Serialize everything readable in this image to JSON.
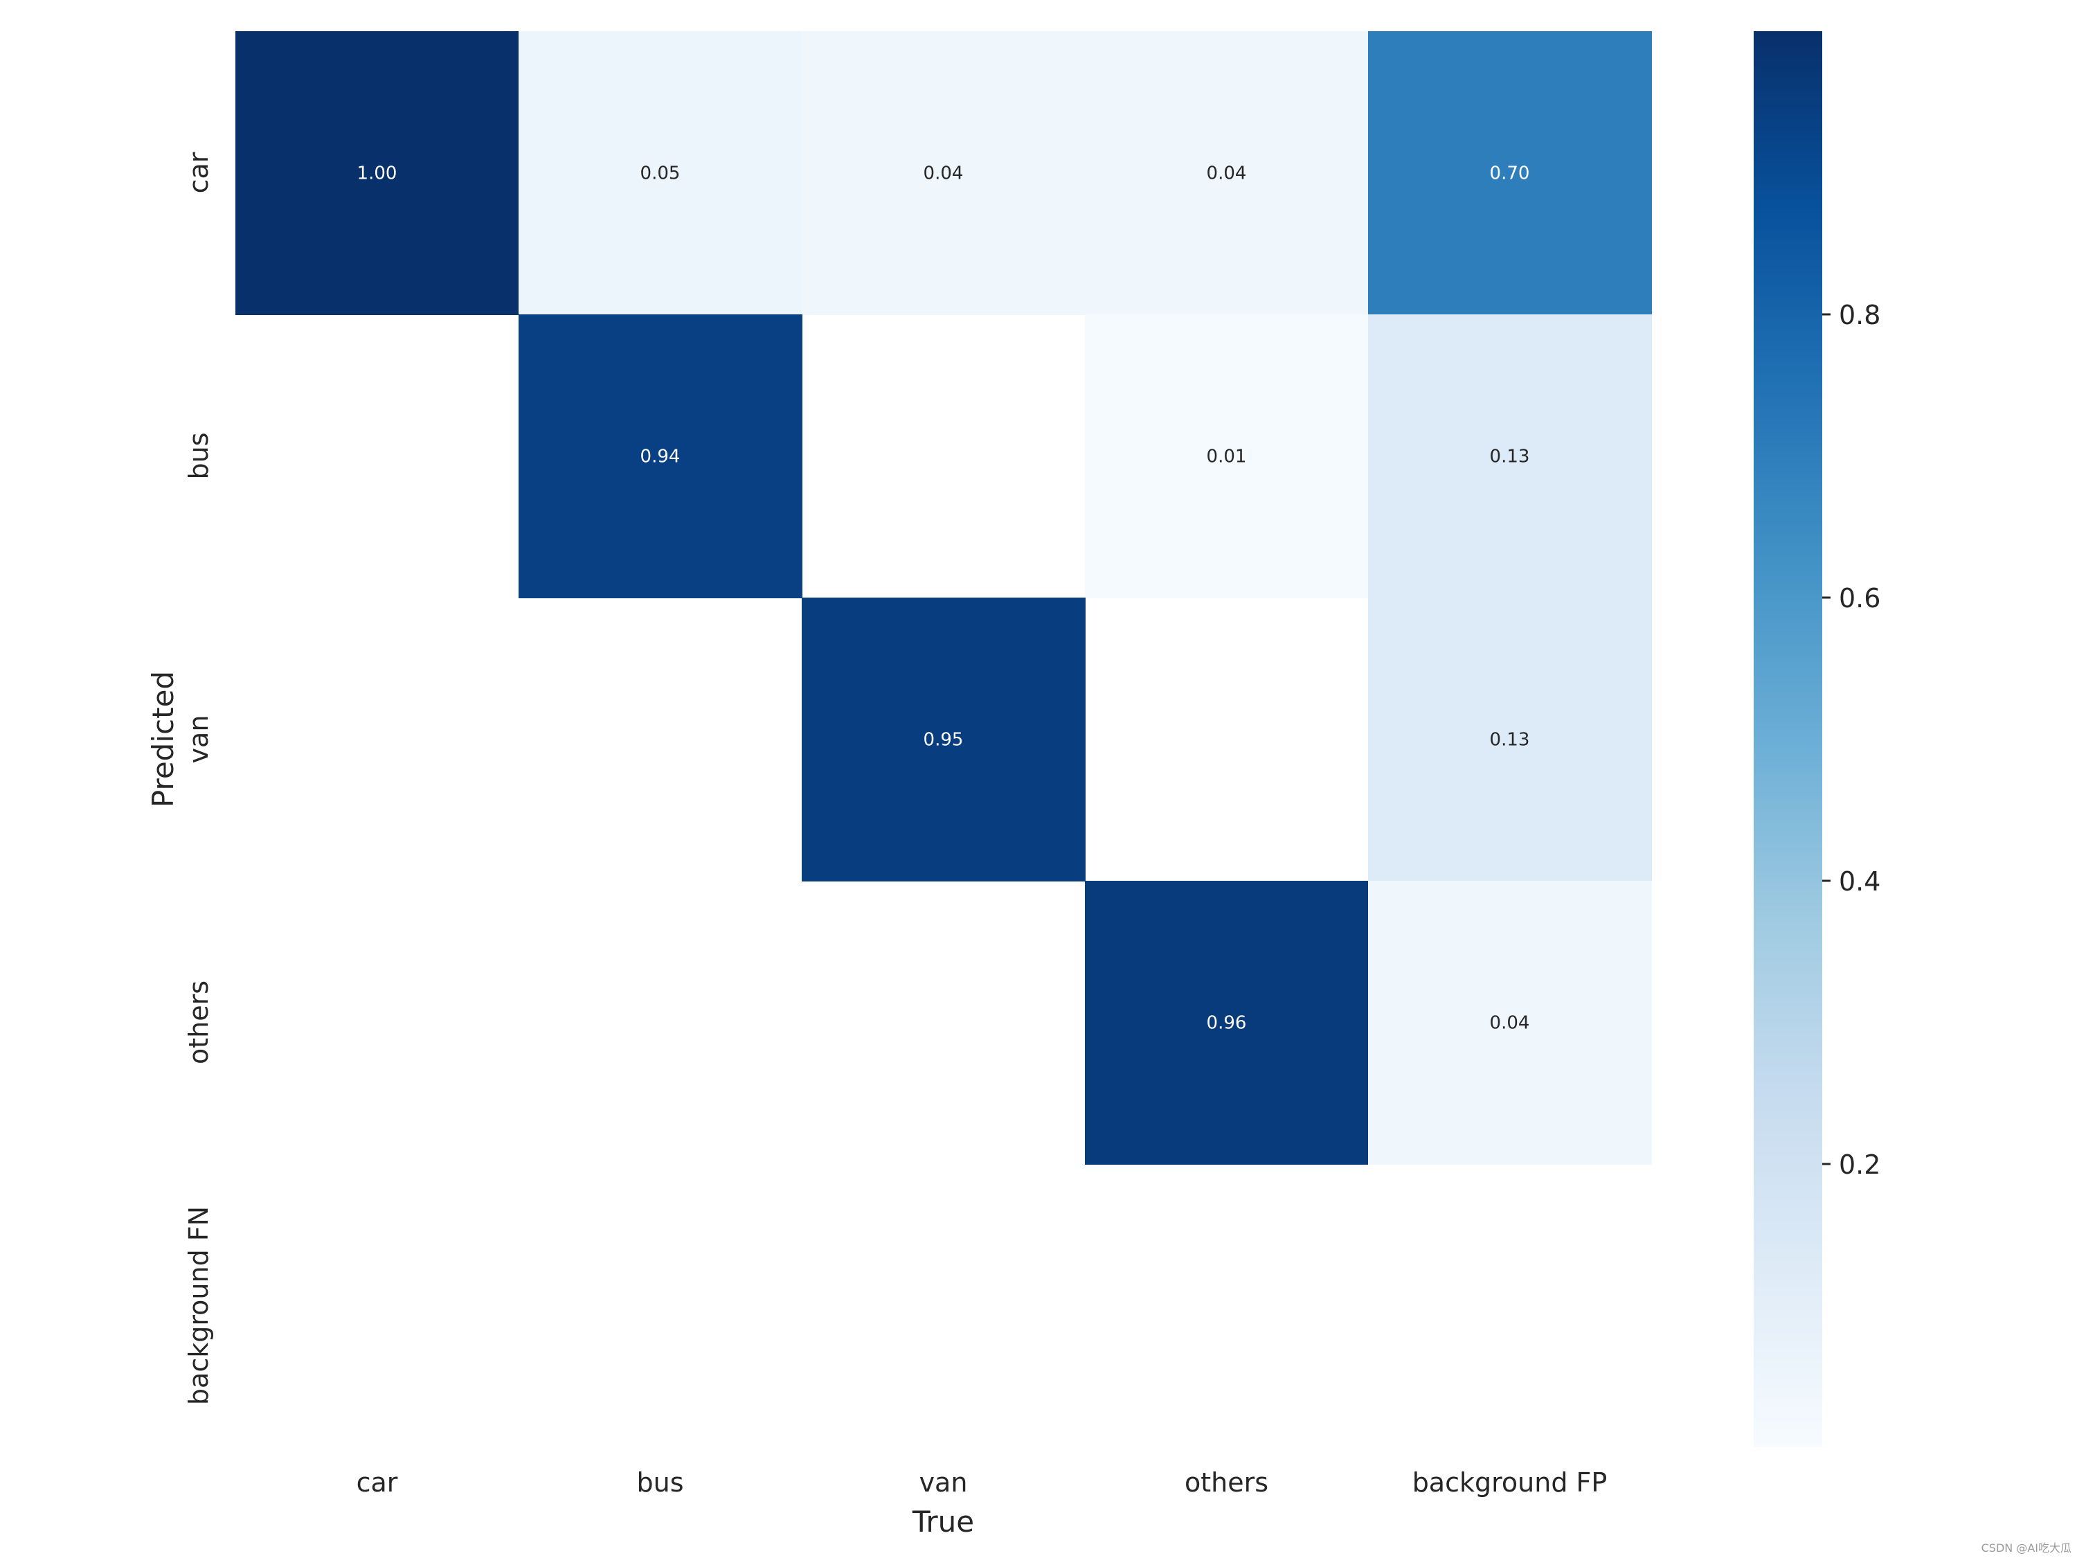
{
  "chart_data": {
    "type": "heatmap",
    "title": "",
    "xlabel": "True",
    "ylabel": "Predicted",
    "x_categories": [
      "car",
      "bus",
      "van",
      "others",
      "background FP"
    ],
    "y_categories": [
      "car",
      "bus",
      "van",
      "others",
      "background FN"
    ],
    "values": [
      [
        1.0,
        0.05,
        0.04,
        0.04,
        0.7
      ],
      [
        null,
        0.94,
        null,
        0.01,
        0.13
      ],
      [
        null,
        null,
        0.95,
        null,
        0.13
      ],
      [
        null,
        null,
        null,
        0.96,
        0.04
      ],
      [
        null,
        null,
        null,
        null,
        null
      ]
    ],
    "annotation_format": "0.00",
    "colormap": "Blues",
    "colorbar": {
      "vmin": 0.0,
      "vmax": 1.0,
      "ticks": [
        0.2,
        0.4,
        0.6,
        0.8
      ]
    },
    "grid": false
  },
  "watermark": "CSDN @AI吃大瓜"
}
